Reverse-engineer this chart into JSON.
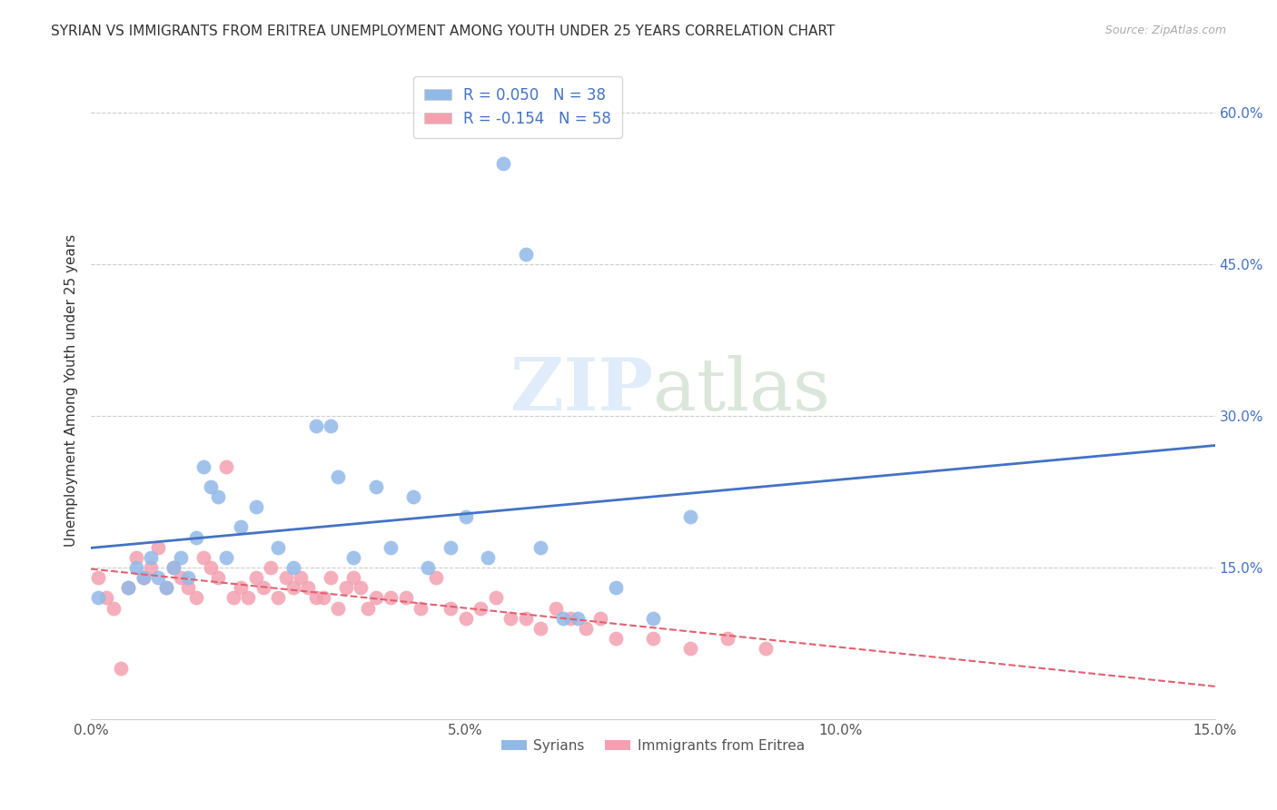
{
  "title": "SYRIAN VS IMMIGRANTS FROM ERITREA UNEMPLOYMENT AMONG YOUTH UNDER 25 YEARS CORRELATION CHART",
  "source": "Source: ZipAtlas.com",
  "ylabel": "Unemployment Among Youth under 25 years",
  "xlim": [
    0,
    0.15
  ],
  "ylim": [
    0,
    0.65
  ],
  "R_syrian": 0.05,
  "N_syrian": 38,
  "R_eritrea": -0.154,
  "N_eritrea": 58,
  "color_syrian": "#91b9e8",
  "color_eritrea": "#f4a0b0",
  "color_line_syrian": "#4472c4",
  "color_line_eritrea": "#e06070",
  "watermark_zip": "ZIP",
  "watermark_atlas": "atlas",
  "syrian_x": [
    0.001,
    0.005,
    0.006,
    0.007,
    0.008,
    0.009,
    0.01,
    0.011,
    0.012,
    0.013,
    0.014,
    0.015,
    0.016,
    0.017,
    0.018,
    0.02,
    0.022,
    0.025,
    0.027,
    0.03,
    0.032,
    0.033,
    0.035,
    0.038,
    0.04,
    0.043,
    0.045,
    0.048,
    0.05,
    0.053,
    0.055,
    0.058,
    0.06,
    0.063,
    0.065,
    0.07,
    0.075,
    0.08
  ],
  "syrian_y": [
    0.12,
    0.13,
    0.15,
    0.14,
    0.16,
    0.14,
    0.13,
    0.15,
    0.16,
    0.14,
    0.18,
    0.25,
    0.23,
    0.22,
    0.16,
    0.19,
    0.21,
    0.17,
    0.15,
    0.29,
    0.29,
    0.24,
    0.16,
    0.23,
    0.17,
    0.22,
    0.15,
    0.17,
    0.2,
    0.16,
    0.55,
    0.46,
    0.17,
    0.1,
    0.1,
    0.13,
    0.1,
    0.2
  ],
  "eritrea_x": [
    0.001,
    0.002,
    0.003,
    0.004,
    0.005,
    0.006,
    0.007,
    0.008,
    0.009,
    0.01,
    0.011,
    0.012,
    0.013,
    0.014,
    0.015,
    0.016,
    0.017,
    0.018,
    0.019,
    0.02,
    0.021,
    0.022,
    0.023,
    0.024,
    0.025,
    0.026,
    0.027,
    0.028,
    0.029,
    0.03,
    0.031,
    0.032,
    0.033,
    0.034,
    0.035,
    0.036,
    0.037,
    0.038,
    0.04,
    0.042,
    0.044,
    0.046,
    0.048,
    0.05,
    0.052,
    0.054,
    0.056,
    0.058,
    0.06,
    0.062,
    0.064,
    0.066,
    0.068,
    0.07,
    0.075,
    0.08,
    0.085,
    0.09
  ],
  "eritrea_y": [
    0.14,
    0.12,
    0.11,
    0.05,
    0.13,
    0.16,
    0.14,
    0.15,
    0.17,
    0.13,
    0.15,
    0.14,
    0.13,
    0.12,
    0.16,
    0.15,
    0.14,
    0.25,
    0.12,
    0.13,
    0.12,
    0.14,
    0.13,
    0.15,
    0.12,
    0.14,
    0.13,
    0.14,
    0.13,
    0.12,
    0.12,
    0.14,
    0.11,
    0.13,
    0.14,
    0.13,
    0.11,
    0.12,
    0.12,
    0.12,
    0.11,
    0.14,
    0.11,
    0.1,
    0.11,
    0.12,
    0.1,
    0.1,
    0.09,
    0.11,
    0.1,
    0.09,
    0.1,
    0.08,
    0.08,
    0.07,
    0.08,
    0.07
  ]
}
